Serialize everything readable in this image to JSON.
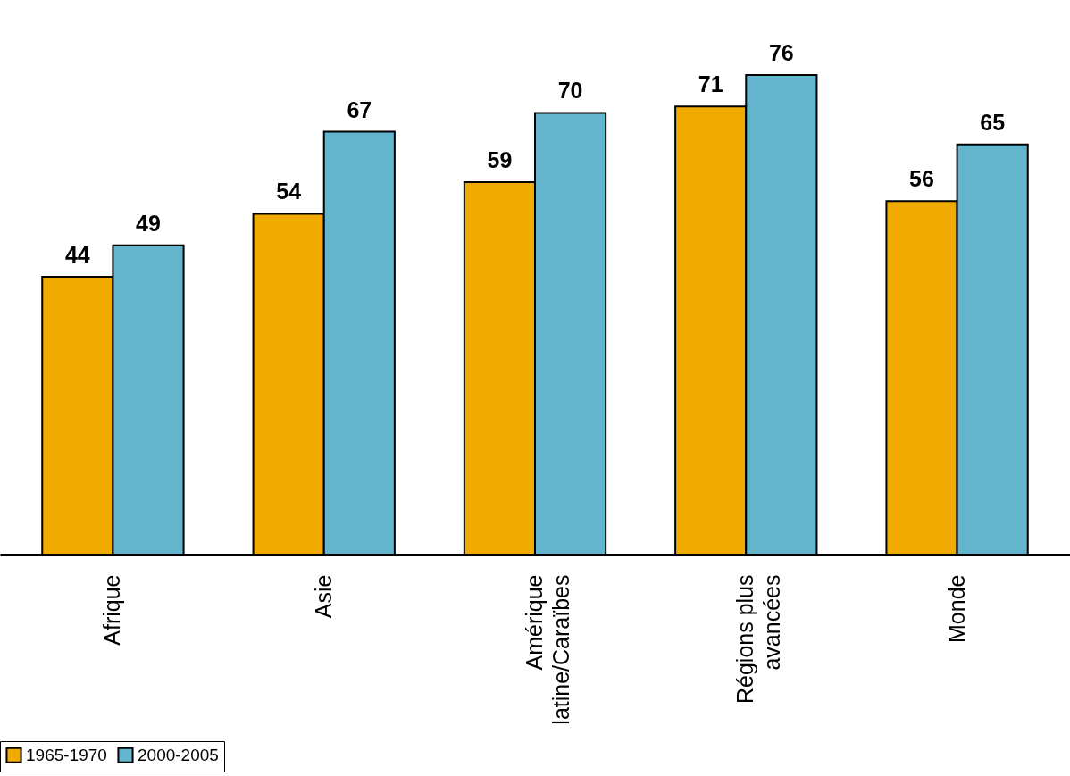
{
  "chart_data": {
    "type": "bar",
    "categories": [
      "Afrique",
      "Asie",
      "Amérique\nlatine/Caraïbes",
      "Régions plus\navancées",
      "Monde"
    ],
    "series": [
      {
        "name": "1965-1970",
        "color": "#f0aa00",
        "values": [
          44,
          54,
          59,
          71,
          56
        ]
      },
      {
        "name": "2000-2005",
        "color": "#62b5cc",
        "values": [
          49,
          67,
          70,
          76,
          65
        ]
      }
    ],
    "ylim": [
      0,
      76
    ],
    "data_labels": true,
    "legend": "bottom",
    "grid": false
  }
}
